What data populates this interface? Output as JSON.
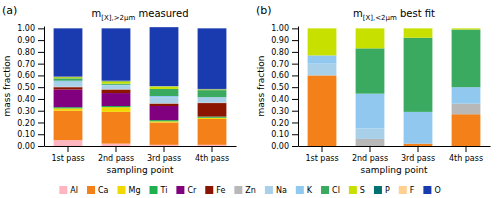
{
  "chart_data": [
    {
      "type": "bar",
      "stacked": true,
      "legend": "bottom",
      "title": "m[X],>2μm measured",
      "annotations": [
        "(a)"
      ],
      "xlabel": "sampling point",
      "ylabel": "mass fraction",
      "categories": [
        "1st pass",
        "2nd pass",
        "3rd pass",
        "4th pass"
      ],
      "ylim": [
        0,
        1.02
      ],
      "yticks": [
        {
          "value": 0.0,
          "label": "0.00"
        },
        {
          "value": 0.1,
          "label": "0.10"
        },
        {
          "value": 0.2,
          "label": "0.20"
        },
        {
          "value": 0.3,
          "label": "0.30"
        },
        {
          "value": 0.4,
          "label": "0.40"
        },
        {
          "value": 0.5,
          "label": "0.50"
        },
        {
          "value": 0.6,
          "label": "0.60"
        },
        {
          "value": 0.7,
          "label": "0.70"
        },
        {
          "value": 0.8,
          "label": "0.80"
        },
        {
          "value": 0.9,
          "label": "0.90"
        },
        {
          "value": 1.0,
          "label": "1.00"
        }
      ],
      "series": [
        {
          "name": "Al",
          "color": "#ffb6c1",
          "values": [
            0.05,
            0.02,
            0.01,
            0.01
          ]
        },
        {
          "name": "Ca",
          "color": "#f4801a",
          "values": [
            0.25,
            0.27,
            0.19,
            0.22
          ]
        },
        {
          "name": "Mg",
          "color": "#f0d800",
          "values": [
            0.02,
            0.04,
            0.01,
            0.01
          ]
        },
        {
          "name": "Ti",
          "color": "#20b050",
          "values": [
            0.01,
            0.01,
            0.01,
            0.01
          ]
        },
        {
          "name": "Cr",
          "color": "#800080",
          "values": [
            0.15,
            0.11,
            0.12,
            0.0
          ]
        },
        {
          "name": "Fe",
          "color": "#8b1500",
          "values": [
            0.02,
            0.03,
            0.02,
            0.115
          ]
        },
        {
          "name": "Zn",
          "color": "#b8b8b8",
          "values": [
            0.005,
            0.005,
            0.005,
            0.005
          ]
        },
        {
          "name": "Na",
          "color": "#a8d0e8",
          "values": [
            0.04,
            0.03,
            0.05,
            0.04
          ]
        },
        {
          "name": "K",
          "color": "#90c8f0",
          "values": [
            0.01,
            0.005,
            0.01,
            0.005
          ]
        },
        {
          "name": "Cl",
          "color": "#3aaa60",
          "values": [
            0.02,
            0.01,
            0.06,
            0.06
          ]
        },
        {
          "name": "S",
          "color": "#c8e000",
          "values": [
            0.01,
            0.02,
            0.02,
            0.005
          ]
        },
        {
          "name": "P",
          "color": "#007070",
          "values": [
            0.003,
            0.003,
            0.003,
            0.003
          ]
        },
        {
          "name": "F",
          "color": "#ffd090",
          "values": [
            0.002,
            0.002,
            0.002,
            0.002
          ]
        },
        {
          "name": "O",
          "color": "#1a3ab0",
          "values": [
            0.41,
            0.445,
            0.5,
            0.515
          ]
        }
      ]
    },
    {
      "type": "bar",
      "stacked": true,
      "title": "m[X],<2μm best fit",
      "annotations": [
        "(b)"
      ],
      "xlabel": "sampling point",
      "ylabel": "mass fraction",
      "categories": [
        "1st pass",
        "2nd pass",
        "3rd pass",
        "4th pass"
      ],
      "ylim": [
        0,
        1.02
      ],
      "yticks": [
        {
          "value": 0.0,
          "label": "0.00"
        },
        {
          "value": 0.1,
          "label": "0.10"
        },
        {
          "value": 0.2,
          "label": "0.20"
        },
        {
          "value": 0.3,
          "label": "0.30"
        },
        {
          "value": 0.4,
          "label": "0.40"
        },
        {
          "value": 0.5,
          "label": "0.50"
        },
        {
          "value": 0.6,
          "label": "0.60"
        },
        {
          "value": 0.7,
          "label": "0.70"
        },
        {
          "value": 0.8,
          "label": "0.80"
        },
        {
          "value": 0.9,
          "label": "0.90"
        },
        {
          "value": 1.0,
          "label": "1.00"
        }
      ],
      "series": [
        {
          "name": "Al",
          "color": "#ffb6c1",
          "values": [
            0.0,
            0.0,
            0.0,
            0.0
          ]
        },
        {
          "name": "Ca",
          "color": "#f4801a",
          "values": [
            0.6,
            0.0,
            0.02,
            0.27
          ]
        },
        {
          "name": "Mg",
          "color": "#f0d800",
          "values": [
            0.0,
            0.0,
            0.0,
            0.0
          ]
        },
        {
          "name": "Ti",
          "color": "#20b050",
          "values": [
            0.0,
            0.0,
            0.0,
            0.0
          ]
        },
        {
          "name": "Cr",
          "color": "#800080",
          "values": [
            0.0,
            0.0,
            0.0,
            0.0
          ]
        },
        {
          "name": "Fe",
          "color": "#8b1500",
          "values": [
            0.0,
            0.0,
            0.0,
            0.0
          ]
        },
        {
          "name": "Zn",
          "color": "#b8b8b8",
          "values": [
            0.0,
            0.06,
            0.0,
            0.09
          ]
        },
        {
          "name": "Na",
          "color": "#a8d0e8",
          "values": [
            0.1,
            0.09,
            0.0,
            0.0
          ]
        },
        {
          "name": "K",
          "color": "#90c8f0",
          "values": [
            0.07,
            0.295,
            0.27,
            0.14
          ]
        },
        {
          "name": "Cl",
          "color": "#3aaa60",
          "values": [
            0.0,
            0.385,
            0.63,
            0.49
          ]
        },
        {
          "name": "S",
          "color": "#c8e000",
          "values": [
            0.23,
            0.17,
            0.08,
            0.01
          ]
        },
        {
          "name": "P",
          "color": "#007070",
          "values": [
            0.0,
            0.0,
            0.0,
            0.0
          ]
        },
        {
          "name": "F",
          "color": "#ffd090",
          "values": [
            0.0,
            0.0,
            0.0,
            0.0
          ]
        },
        {
          "name": "O",
          "color": "#1a3ab0",
          "values": [
            0.0,
            0.0,
            0.0,
            0.0
          ]
        }
      ]
    }
  ]
}
